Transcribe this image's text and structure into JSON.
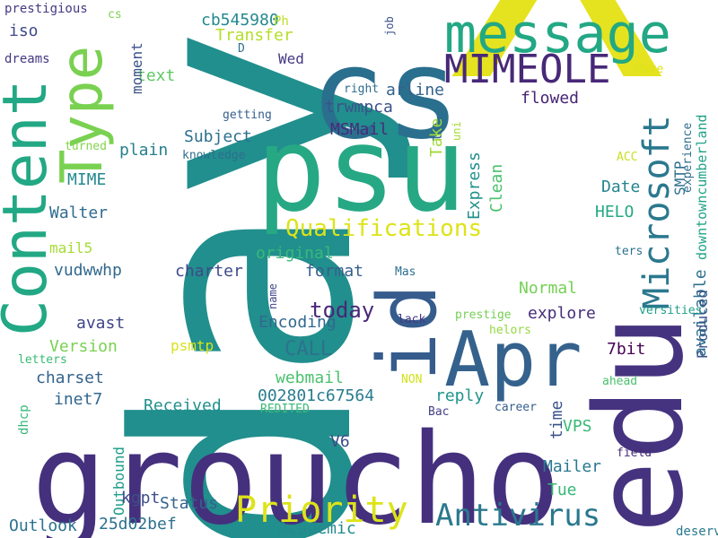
{
  "words": [
    {
      "text": "X",
      "color": "#e5e31f"
    },
    {
      "text": "day",
      "color": "#218f8d"
    },
    {
      "text": "groucho",
      "color": "#45307d"
    },
    {
      "text": "cs",
      "color": "#2a6f8e"
    },
    {
      "text": "psu",
      "color": "#27a884"
    },
    {
      "text": "edu",
      "color": "#46337f"
    },
    {
      "text": "Apr",
      "color": "#35628d"
    },
    {
      "text": "id",
      "color": "#365c8d"
    },
    {
      "text": "message",
      "color": "#22a884"
    },
    {
      "text": "Content",
      "color": "#22a884"
    },
    {
      "text": "Type",
      "color": "#7ad151"
    },
    {
      "text": "MIMEOLE",
      "color": "#482878"
    },
    {
      "text": "Priority",
      "color": "#dde318"
    },
    {
      "text": "Microsoft",
      "color": "#2a788e"
    },
    {
      "text": "Antivirus",
      "color": "#2a788e"
    },
    {
      "text": "Qualifications",
      "color": "#dde318"
    },
    {
      "text": "today",
      "color": "#482777"
    },
    {
      "text": "CALL",
      "color": "#2c728e"
    },
    {
      "text": "cb545980",
      "color": "#23898e"
    },
    {
      "text": "Transfer",
      "color": "#b5de2b"
    },
    {
      "text": "Subject",
      "color": "#2c718e"
    },
    {
      "text": "plain",
      "color": "#277f8e"
    },
    {
      "text": "MSMail",
      "color": "#472c7a"
    },
    {
      "text": "trwmpca",
      "color": "#3b528b"
    },
    {
      "text": "tn",
      "color": "#31688e"
    },
    {
      "text": "arline",
      "color": "#33638d"
    },
    {
      "text": "flowed",
      "color": "#482475"
    },
    {
      "text": "Take",
      "color": "#a0da39"
    },
    {
      "text": "Express",
      "color": "#21918c"
    },
    {
      "text": "Clean",
      "color": "#4ac16d"
    },
    {
      "text": "Date",
      "color": "#25858e"
    },
    {
      "text": "HELO",
      "color": "#23a983"
    },
    {
      "text": "SMTP",
      "color": "#2d708e"
    },
    {
      "text": "available",
      "color": "#2c728e"
    },
    {
      "text": "Produced",
      "color": "#3a548c"
    },
    {
      "text": "downtowncumberland",
      "color": "#20a386"
    },
    {
      "text": "experience",
      "color": "#2e6e8e"
    },
    {
      "text": "Normal",
      "color": "#75d054"
    },
    {
      "text": "explore",
      "color": "#472d7b"
    },
    {
      "text": "Encoding",
      "color": "#31688e"
    },
    {
      "text": "Version",
      "color": "#7ad151"
    },
    {
      "text": "charset",
      "color": "#33638d"
    },
    {
      "text": "format",
      "color": "#355f8d"
    },
    {
      "text": "charter",
      "color": "#3e4a89"
    },
    {
      "text": "original",
      "color": "#38b977"
    },
    {
      "text": "avast",
      "color": "#404688"
    },
    {
      "text": "psmtp",
      "color": "#d8e219"
    },
    {
      "text": "webmail",
      "color": "#4ac16d"
    },
    {
      "text": "002801c67564",
      "color": "#287c8e"
    },
    {
      "text": "reply",
      "color": "#1f948c"
    },
    {
      "text": "time",
      "color": "#3b528b"
    },
    {
      "text": "7bit",
      "color": "#440154"
    },
    {
      "text": "Received",
      "color": "#21918c"
    },
    {
      "text": "inet7",
      "color": "#31688e"
    },
    {
      "text": "Outbound",
      "color": "#1f9e89"
    },
    {
      "text": "Mailer",
      "color": "#2a788e"
    },
    {
      "text": "V6",
      "color": "#3e4a89"
    },
    {
      "text": "VPS",
      "color": "#38b977"
    },
    {
      "text": "Tue",
      "color": "#37b878"
    },
    {
      "text": "Status",
      "color": "#33638d"
    },
    {
      "text": "kgpt",
      "color": "#3d4e8a"
    },
    {
      "text": "Outlook",
      "color": "#2c718e"
    },
    {
      "text": "25d02bef",
      "color": "#2c718e"
    },
    {
      "text": "Academic",
      "color": "#238a8d"
    },
    {
      "text": "vudwwhp",
      "color": "#31688e"
    },
    {
      "text": "mail5",
      "color": "#a5db36"
    },
    {
      "text": "Walter",
      "color": "#2f6c8e"
    },
    {
      "text": "MIME",
      "color": "#23898e"
    },
    {
      "text": "text",
      "color": "#5ec962"
    },
    {
      "text": "iso",
      "color": "#3e4a89"
    },
    {
      "text": "moment",
      "color": "#3b528b"
    },
    {
      "text": "Wed",
      "color": "#453882"
    },
    {
      "text": "prestigious",
      "color": "#443a83"
    },
    {
      "text": "cs",
      "color": "#7fd34e"
    },
    {
      "text": "dreams",
      "color": "#453781"
    },
    {
      "text": "Ph",
      "color": "#bddf26"
    },
    {
      "text": "D",
      "color": "#2d708e"
    },
    {
      "text": "job",
      "color": "#3b528b"
    },
    {
      "text": "Move",
      "color": "#dde318"
    },
    {
      "text": "right",
      "color": "#2e6e8e"
    },
    {
      "text": "getting",
      "color": "#355f8d"
    },
    {
      "text": "turned",
      "color": "#84d44b"
    },
    {
      "text": "knowledge",
      "color": "#2e6e8e"
    },
    {
      "text": "uni",
      "color": "#a5db36"
    },
    {
      "text": "ACC",
      "color": "#c8e020"
    },
    {
      "text": "ters",
      "color": "#2c718e"
    },
    {
      "text": "Mas",
      "color": "#2d708e"
    },
    {
      "text": "name",
      "color": "#414487"
    },
    {
      "text": "lack",
      "color": "#453781"
    },
    {
      "text": "prestige",
      "color": "#75d054"
    },
    {
      "text": "helors",
      "color": "#95d840"
    },
    {
      "text": "versities",
      "color": "#1f9e89"
    },
    {
      "text": "letters",
      "color": "#3aba76"
    },
    {
      "text": "NON",
      "color": "#d2e21b"
    },
    {
      "text": "ahead",
      "color": "#4ac16d"
    },
    {
      "text": "REDITED",
      "color": "#3aba76"
    },
    {
      "text": "Bac",
      "color": "#424186"
    },
    {
      "text": "career",
      "color": "#355f8d"
    },
    {
      "text": "dhcp",
      "color": "#35b779"
    },
    {
      "text": "field",
      "color": "#472c7a"
    },
    {
      "text": "deserve",
      "color": "#2a788e"
    }
  ]
}
